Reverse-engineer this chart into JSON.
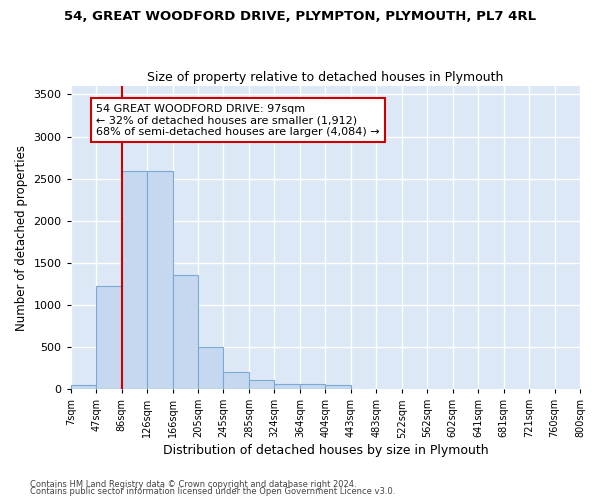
{
  "title1": "54, GREAT WOODFORD DRIVE, PLYMPTON, PLYMOUTH, PL7 4RL",
  "title2": "Size of property relative to detached houses in Plymouth",
  "xlabel": "Distribution of detached houses by size in Plymouth",
  "ylabel": "Number of detached properties",
  "bar_values": [
    50,
    1230,
    2590,
    2590,
    1350,
    500,
    200,
    110,
    60,
    55,
    45,
    0,
    0,
    0,
    0,
    0,
    0,
    0,
    0,
    0
  ],
  "bar_color": "#c5d8f0",
  "bar_edge_color": "#7aaad4",
  "tick_labels": [
    "7sqm",
    "47sqm",
    "86sqm",
    "126sqm",
    "166sqm",
    "205sqm",
    "245sqm",
    "285sqm",
    "324sqm",
    "364sqm",
    "404sqm",
    "443sqm",
    "483sqm",
    "522sqm",
    "562sqm",
    "602sqm",
    "641sqm",
    "681sqm",
    "721sqm",
    "760sqm",
    "800sqm"
  ],
  "property_line_x": 2.0,
  "property_line_color": "#cc0000",
  "ylim": [
    0,
    3600
  ],
  "yticks": [
    0,
    500,
    1000,
    1500,
    2000,
    2500,
    3000,
    3500
  ],
  "annotation_text": "54 GREAT WOODFORD DRIVE: 97sqm\n← 32% of detached houses are smaller (1,912)\n68% of semi-detached houses are larger (4,084) →",
  "bg_color": "#dce8f5",
  "grid_color": "#ffffff",
  "footer1": "Contains HM Land Registry data © Crown copyright and database right 2024.",
  "footer2": "Contains public sector information licensed under the Open Government Licence v3.0."
}
